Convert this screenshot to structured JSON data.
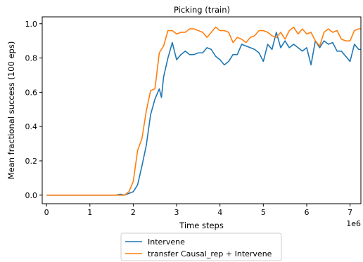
{
  "chart_data": {
    "type": "line",
    "title": "Picking (train)",
    "xlabel": "Time steps",
    "ylabel": "Mean fractional success (100 eps)",
    "x_offset_text": "1e6",
    "xlim": [
      -0.1,
      7.25
    ],
    "ylim": [
      -0.05,
      1.04
    ],
    "xticks": [
      0,
      1,
      2,
      3,
      4,
      5,
      6,
      7
    ],
    "xtick_labels": [
      "0",
      "1",
      "2",
      "3",
      "4",
      "5",
      "6",
      "7"
    ],
    "yticks": [
      0.0,
      0.2,
      0.4,
      0.6,
      0.8,
      1.0
    ],
    "ytick_labels": [
      "0.0",
      "0.2",
      "0.4",
      "0.6",
      "0.8",
      "1.0"
    ],
    "grid": false,
    "legend_position": "bottom-center-outside",
    "series": [
      {
        "name": "Intervene",
        "color": "#1f77b4",
        "points": [
          [
            0.0,
            0.0
          ],
          [
            0.1,
            0.0
          ],
          [
            0.2,
            0.0
          ],
          [
            0.3,
            0.0
          ],
          [
            0.4,
            0.0
          ],
          [
            0.5,
            0.0
          ],
          [
            0.6,
            0.0
          ],
          [
            0.7,
            0.0
          ],
          [
            0.8,
            0.0
          ],
          [
            0.9,
            0.0
          ],
          [
            1.0,
            0.0
          ],
          [
            1.1,
            0.0
          ],
          [
            1.2,
            0.0
          ],
          [
            1.3,
            0.0
          ],
          [
            1.4,
            0.0
          ],
          [
            1.5,
            0.0
          ],
          [
            1.6,
            0.0
          ],
          [
            1.7,
            0.005
          ],
          [
            1.8,
            0.0
          ],
          [
            1.9,
            0.01
          ],
          [
            2.0,
            0.02
          ],
          [
            2.1,
            0.06
          ],
          [
            2.2,
            0.17
          ],
          [
            2.3,
            0.29
          ],
          [
            2.4,
            0.47
          ],
          [
            2.5,
            0.56
          ],
          [
            2.6,
            0.62
          ],
          [
            2.65,
            0.57
          ],
          [
            2.7,
            0.69
          ],
          [
            2.8,
            0.8
          ],
          [
            2.9,
            0.89
          ],
          [
            3.0,
            0.79
          ],
          [
            3.1,
            0.82
          ],
          [
            3.2,
            0.84
          ],
          [
            3.3,
            0.82
          ],
          [
            3.4,
            0.82
          ],
          [
            3.5,
            0.83
          ],
          [
            3.6,
            0.83
          ],
          [
            3.7,
            0.86
          ],
          [
            3.8,
            0.85
          ],
          [
            3.9,
            0.81
          ],
          [
            4.0,
            0.79
          ],
          [
            4.1,
            0.76
          ],
          [
            4.2,
            0.78
          ],
          [
            4.3,
            0.82
          ],
          [
            4.4,
            0.82
          ],
          [
            4.5,
            0.88
          ],
          [
            4.6,
            0.87
          ],
          [
            4.7,
            0.86
          ],
          [
            4.8,
            0.85
          ],
          [
            4.9,
            0.83
          ],
          [
            5.0,
            0.78
          ],
          [
            5.1,
            0.88
          ],
          [
            5.2,
            0.85
          ],
          [
            5.3,
            0.95
          ],
          [
            5.4,
            0.86
          ],
          [
            5.5,
            0.9
          ],
          [
            5.6,
            0.86
          ],
          [
            5.7,
            0.88
          ],
          [
            5.8,
            0.86
          ],
          [
            5.9,
            0.84
          ],
          [
            6.0,
            0.86
          ],
          [
            6.1,
            0.76
          ],
          [
            6.2,
            0.9
          ],
          [
            6.3,
            0.86
          ],
          [
            6.4,
            0.9
          ],
          [
            6.5,
            0.88
          ],
          [
            6.6,
            0.89
          ],
          [
            6.7,
            0.84
          ],
          [
            6.8,
            0.84
          ],
          [
            6.9,
            0.81
          ],
          [
            7.0,
            0.78
          ],
          [
            7.1,
            0.88
          ],
          [
            7.2,
            0.85
          ],
          [
            7.3,
            0.85
          ],
          [
            7.4,
            0.87
          ],
          [
            7.5,
            0.85
          ]
        ]
      },
      {
        "name": "transfer Causal_rep + Intervene",
        "color": "#ff7f0e",
        "points": [
          [
            0.0,
            0.0
          ],
          [
            0.1,
            0.0
          ],
          [
            0.2,
            0.0
          ],
          [
            0.3,
            0.0
          ],
          [
            0.4,
            0.0
          ],
          [
            0.5,
            0.0
          ],
          [
            0.6,
            0.0
          ],
          [
            0.7,
            0.0
          ],
          [
            0.8,
            0.0
          ],
          [
            0.9,
            0.0
          ],
          [
            1.0,
            0.0
          ],
          [
            1.1,
            0.0
          ],
          [
            1.2,
            0.0
          ],
          [
            1.3,
            0.0
          ],
          [
            1.4,
            0.0
          ],
          [
            1.5,
            0.0
          ],
          [
            1.6,
            0.0
          ],
          [
            1.7,
            0.0
          ],
          [
            1.8,
            0.0
          ],
          [
            1.9,
            0.02
          ],
          [
            2.0,
            0.08
          ],
          [
            2.1,
            0.26
          ],
          [
            2.2,
            0.33
          ],
          [
            2.3,
            0.49
          ],
          [
            2.4,
            0.61
          ],
          [
            2.5,
            0.62
          ],
          [
            2.6,
            0.83
          ],
          [
            2.7,
            0.87
          ],
          [
            2.8,
            0.96
          ],
          [
            2.9,
            0.96
          ],
          [
            3.0,
            0.94
          ],
          [
            3.1,
            0.95
          ],
          [
            3.2,
            0.95
          ],
          [
            3.3,
            0.97
          ],
          [
            3.4,
            0.97
          ],
          [
            3.5,
            0.96
          ],
          [
            3.6,
            0.95
          ],
          [
            3.7,
            0.92
          ],
          [
            3.8,
            0.95
          ],
          [
            3.9,
            0.98
          ],
          [
            4.0,
            0.96
          ],
          [
            4.1,
            0.96
          ],
          [
            4.2,
            0.95
          ],
          [
            4.3,
            0.89
          ],
          [
            4.4,
            0.92
          ],
          [
            4.5,
            0.91
          ],
          [
            4.6,
            0.89
          ],
          [
            4.7,
            0.92
          ],
          [
            4.8,
            0.93
          ],
          [
            4.9,
            0.96
          ],
          [
            5.0,
            0.96
          ],
          [
            5.1,
            0.95
          ],
          [
            5.2,
            0.93
          ],
          [
            5.3,
            0.92
          ],
          [
            5.4,
            0.95
          ],
          [
            5.5,
            0.91
          ],
          [
            5.6,
            0.96
          ],
          [
            5.7,
            0.98
          ],
          [
            5.8,
            0.94
          ],
          [
            5.9,
            0.97
          ],
          [
            6.0,
            0.94
          ],
          [
            6.1,
            0.95
          ],
          [
            6.2,
            0.9
          ],
          [
            6.3,
            0.87
          ],
          [
            6.4,
            0.95
          ],
          [
            6.5,
            0.97
          ],
          [
            6.6,
            0.95
          ],
          [
            6.7,
            0.96
          ],
          [
            6.8,
            0.91
          ],
          [
            6.9,
            0.9
          ],
          [
            7.0,
            0.9
          ],
          [
            7.1,
            0.96
          ],
          [
            7.2,
            0.97
          ],
          [
            7.3,
            0.97
          ],
          [
            7.4,
            0.93
          ],
          [
            7.5,
            0.96
          ]
        ]
      }
    ]
  }
}
